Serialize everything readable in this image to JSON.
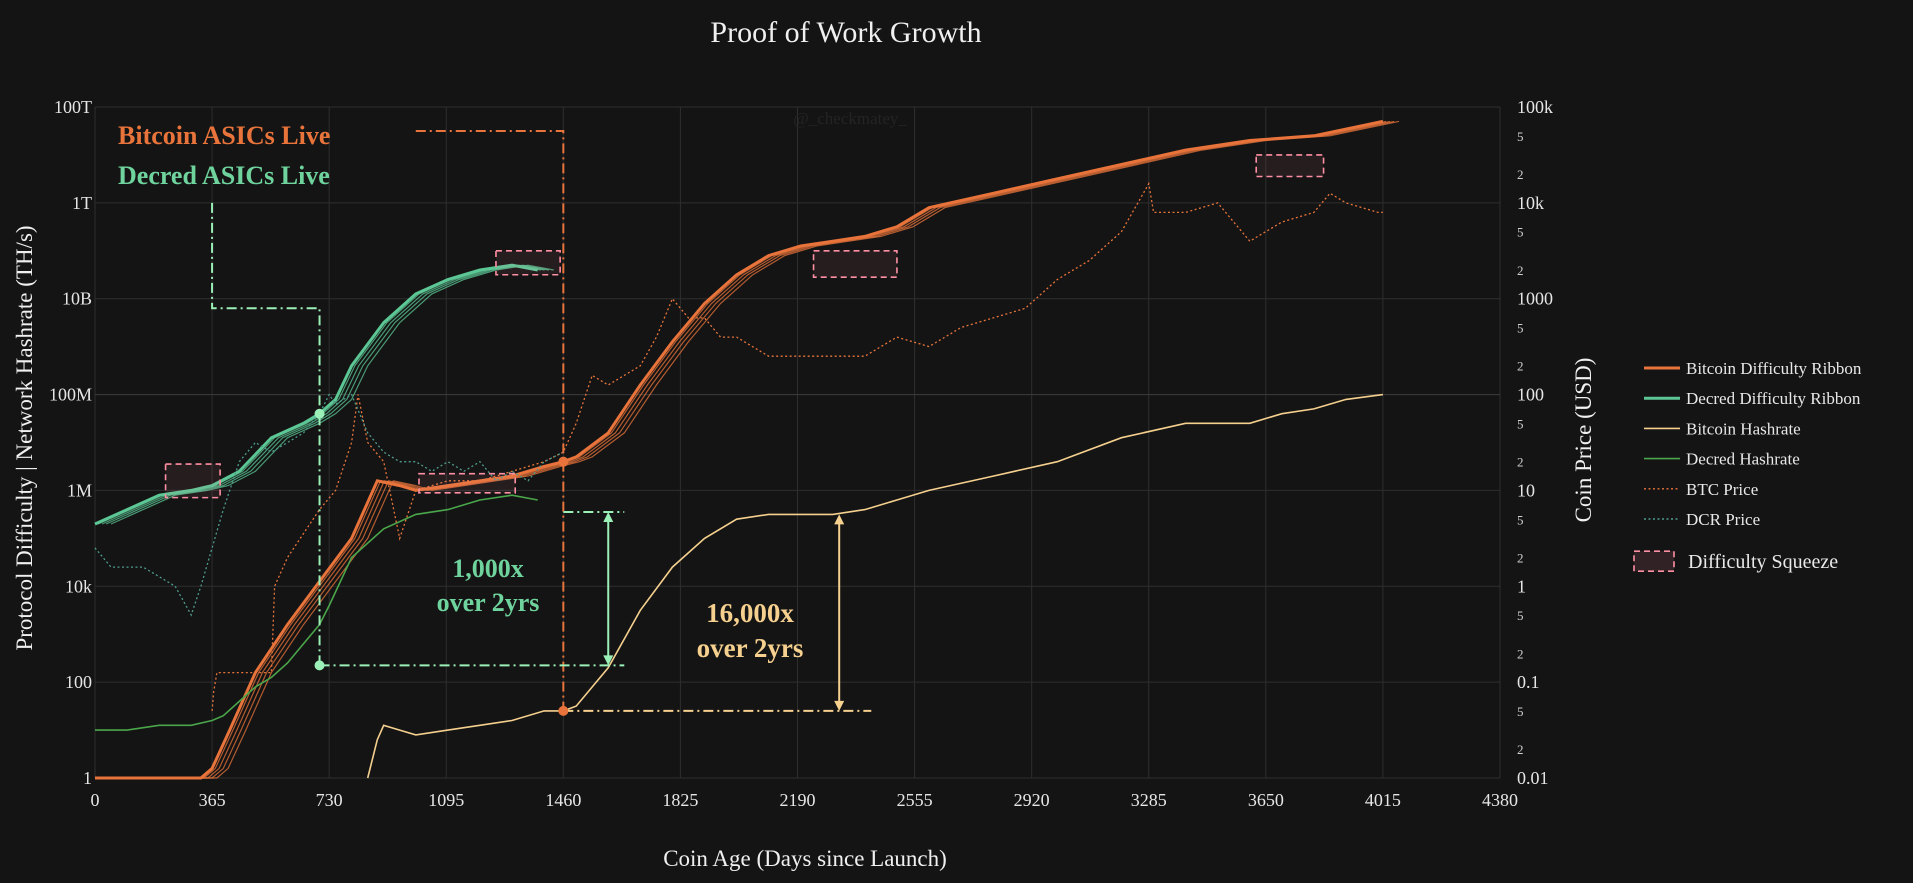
{
  "chart_data": {
    "type": "line",
    "title": "Proof of Work Growth",
    "xlabel": "Coin Age (Days since Launch)",
    "ylabel_left": "Protocol Difficulty  |  Network Hashrate (TH/s)",
    "ylabel_right": "Coin Price (USD)",
    "watermark": "@_checkmatey_",
    "x_range": [
      0,
      4380
    ],
    "x_ticks": [
      "0",
      "365",
      "730",
      "1095",
      "1460",
      "1825",
      "2190",
      "2555",
      "2920",
      "3285",
      "3650",
      "4015",
      "4380"
    ],
    "y_left_log_range": [
      0,
      14
    ],
    "y_left_ticks": [
      {
        "label": "1",
        "exp": 0
      },
      {
        "label": "100",
        "exp": 2
      },
      {
        "label": "10k",
        "exp": 4
      },
      {
        "label": "1M",
        "exp": 6
      },
      {
        "label": "100M",
        "exp": 8
      },
      {
        "label": "10B",
        "exp": 10
      },
      {
        "label": "1T",
        "exp": 12
      },
      {
        "label": "100T",
        "exp": 14
      }
    ],
    "y_right_log_range": [
      -2,
      5
    ],
    "y_right_ticks": [
      {
        "label": "0.01",
        "exp": -2
      },
      {
        "label": "0.1",
        "exp": -1
      },
      {
        "label": "1",
        "exp": 0
      },
      {
        "label": "10",
        "exp": 1
      },
      {
        "label": "100",
        "exp": 2
      },
      {
        "label": "1000",
        "exp": 3
      },
      {
        "label": "10k",
        "exp": 4
      },
      {
        "label": "100k",
        "exp": 5
      }
    ],
    "y_right_minor": [
      {
        "label": "2",
        "exp": -1.699
      },
      {
        "label": "5",
        "exp": -1.301
      },
      {
        "label": "2",
        "exp": -0.699
      },
      {
        "label": "5",
        "exp": -0.301
      },
      {
        "label": "2",
        "exp": 0.301
      },
      {
        "label": "5",
        "exp": 0.699
      },
      {
        "label": "2",
        "exp": 1.301
      },
      {
        "label": "5",
        "exp": 1.699
      },
      {
        "label": "2",
        "exp": 2.301
      },
      {
        "label": "5",
        "exp": 2.699
      },
      {
        "label": "2",
        "exp": 3.301
      },
      {
        "label": "5",
        "exp": 3.699
      },
      {
        "label": "2",
        "exp": 4.301
      },
      {
        "label": "5",
        "exp": 4.699
      }
    ],
    "series": [
      {
        "name": "Bitcoin Difficulty Ribbon",
        "axis": "left",
        "color": "#e8743b",
        "style": "ribbon",
        "x": [
          0,
          330,
          365,
          420,
          500,
          600,
          700,
          800,
          880,
          950,
          1000,
          1100,
          1200,
          1300,
          1400,
          1460,
          1500,
          1600,
          1700,
          1800,
          1900,
          2000,
          2100,
          2200,
          2300,
          2400,
          2500,
          2600,
          2800,
          3000,
          3200,
          3400,
          3600,
          3800,
          4015
        ],
        "y": [
          0,
          0,
          0.2,
          1.0,
          2.2,
          3.2,
          4.1,
          5.0,
          6.2,
          6.1,
          6.0,
          6.1,
          6.2,
          6.3,
          6.5,
          6.6,
          6.7,
          7.2,
          8.2,
          9.1,
          9.9,
          10.5,
          10.9,
          11.1,
          11.2,
          11.3,
          11.5,
          11.9,
          12.2,
          12.5,
          12.8,
          13.1,
          13.3,
          13.4,
          13.7
        ]
      },
      {
        "name": "Decred Difficulty Ribbon",
        "axis": "left",
        "color": "#5cc795",
        "style": "ribbon",
        "x": [
          0,
          100,
          200,
          300,
          365,
          450,
          550,
          650,
          700,
          750,
          800,
          900,
          1000,
          1100,
          1200,
          1300,
          1380
        ],
        "y": [
          5.3,
          5.6,
          5.9,
          6.0,
          6.1,
          6.4,
          7.1,
          7.4,
          7.6,
          7.9,
          8.6,
          9.5,
          10.1,
          10.4,
          10.6,
          10.7,
          10.6
        ]
      },
      {
        "name": "Bitcoin Hashrate",
        "axis": "left",
        "color": "#f5d08e",
        "style": "solid",
        "x": [
          850,
          880,
          900,
          950,
          1000,
          1100,
          1200,
          1300,
          1400,
          1460,
          1500,
          1600,
          1700,
          1800,
          1900,
          2000,
          2100,
          2200,
          2300,
          2400,
          2500,
          2600,
          2800,
          3000,
          3200,
          3400,
          3600,
          3700,
          3800,
          3900,
          4015
        ],
        "y": [
          0,
          0.8,
          1.1,
          1.0,
          0.9,
          1.0,
          1.1,
          1.2,
          1.4,
          1.4,
          1.5,
          2.3,
          3.5,
          4.4,
          5.0,
          5.4,
          5.5,
          5.5,
          5.5,
          5.6,
          5.8,
          6.0,
          6.3,
          6.6,
          7.1,
          7.4,
          7.4,
          7.6,
          7.7,
          7.9,
          8.0
        ]
      },
      {
        "name": "Decred Hashrate",
        "axis": "left",
        "color": "#4aa64a",
        "style": "solid",
        "x": [
          0,
          100,
          200,
          300,
          365,
          400,
          500,
          550,
          600,
          650,
          700,
          730,
          800,
          900,
          1000,
          1100,
          1200,
          1300,
          1380
        ],
        "y": [
          1.0,
          1.0,
          1.1,
          1.1,
          1.2,
          1.3,
          1.9,
          2.1,
          2.4,
          2.8,
          3.2,
          3.6,
          4.6,
          5.2,
          5.5,
          5.6,
          5.8,
          5.9,
          5.8
        ]
      },
      {
        "name": "BTC Price",
        "axis": "right",
        "color": "#e8743b",
        "style": "dotted",
        "x": [
          365,
          370,
          380,
          450,
          550,
          560,
          600,
          700,
          750,
          800,
          820,
          850,
          900,
          950,
          1000,
          1100,
          1200,
          1300,
          1400,
          1460,
          1500,
          1550,
          1600,
          1700,
          1750,
          1800,
          1850,
          1900,
          1950,
          2000,
          2100,
          2200,
          2300,
          2400,
          2500,
          2600,
          2700,
          2800,
          2900,
          3000,
          3100,
          3200,
          3285,
          3300,
          3400,
          3500,
          3600,
          3700,
          3800,
          3850,
          3900,
          4000,
          4015
        ],
        "y": [
          -1.3,
          -1.1,
          -0.9,
          -0.9,
          -0.9,
          0.0,
          0.3,
          0.8,
          1.0,
          1.5,
          2.0,
          1.5,
          1.3,
          0.5,
          1.0,
          1.1,
          1.1,
          1.2,
          1.3,
          1.4,
          1.7,
          2.2,
          2.1,
          2.3,
          2.6,
          3.0,
          2.8,
          2.8,
          2.6,
          2.6,
          2.4,
          2.4,
          2.4,
          2.4,
          2.6,
          2.5,
          2.7,
          2.8,
          2.9,
          3.2,
          3.4,
          3.7,
          4.2,
          3.9,
          3.9,
          4.0,
          3.6,
          3.8,
          3.9,
          4.1,
          4.0,
          3.9,
          3.9
        ]
      },
      {
        "name": "DCR Price",
        "axis": "right",
        "color": "#4e9c8d",
        "style": "dotted",
        "x": [
          0,
          50,
          100,
          150,
          200,
          250,
          300,
          330,
          365,
          400,
          450,
          500,
          550,
          600,
          650,
          700,
          730,
          750,
          800,
          850,
          900,
          950,
          1000,
          1050,
          1100,
          1150,
          1200,
          1250,
          1300,
          1350,
          1400,
          1460
        ],
        "y": [
          0.4,
          0.2,
          0.2,
          0.2,
          0.1,
          0.0,
          -0.3,
          0.0,
          0.4,
          0.8,
          1.3,
          1.5,
          1.4,
          1.5,
          1.6,
          1.8,
          2.0,
          1.9,
          2.0,
          1.6,
          1.4,
          1.3,
          1.3,
          1.2,
          1.3,
          1.2,
          1.3,
          1.1,
          1.2,
          1.1,
          1.3,
          1.4
        ]
      }
    ],
    "difficulty_squeeze_boxes": [
      {
        "x0": 220,
        "x1": 390,
        "y0": 5.85,
        "y1": 6.55
      },
      {
        "x0": 1250,
        "x1": 1450,
        "y0": 10.5,
        "y1": 11.0
      },
      {
        "x0": 1010,
        "x1": 1310,
        "y0": 5.95,
        "y1": 6.35
      },
      {
        "x0": 2240,
        "x1": 2500,
        "y0": 10.45,
        "y1": 11.0
      },
      {
        "x0": 3620,
        "x1": 3830,
        "y0": 12.55,
        "y1": 13.0
      }
    ],
    "annotations": {
      "bitcoin_asics": "Bitcoin ASICs Live",
      "decred_asics": "Decred ASICs Live",
      "dcr_growth_line1": "1,000x",
      "dcr_growth_line2": "over 2yrs",
      "btc_growth_line1": "16,000x",
      "btc_growth_line2": "over 2yrs"
    },
    "legend": [
      {
        "label": "Bitcoin Difficulty Ribbon",
        "color": "#e8743b",
        "style": "solid"
      },
      {
        "label": "Decred Difficulty Ribbon",
        "color": "#5cc795",
        "style": "solid"
      },
      {
        "label": "Bitcoin Hashrate",
        "color": "#f5d08e",
        "style": "thin"
      },
      {
        "label": "Decred Hashrate",
        "color": "#4aa64a",
        "style": "thin"
      },
      {
        "label": "BTC Price",
        "color": "#e8743b",
        "style": "dotted"
      },
      {
        "label": "DCR Price",
        "color": "#4e9c8d",
        "style": "dotted"
      },
      {
        "label": "Difficulty Squeeze",
        "color": "#ff8fa3",
        "style": "box"
      }
    ],
    "legend_position": "right"
  }
}
